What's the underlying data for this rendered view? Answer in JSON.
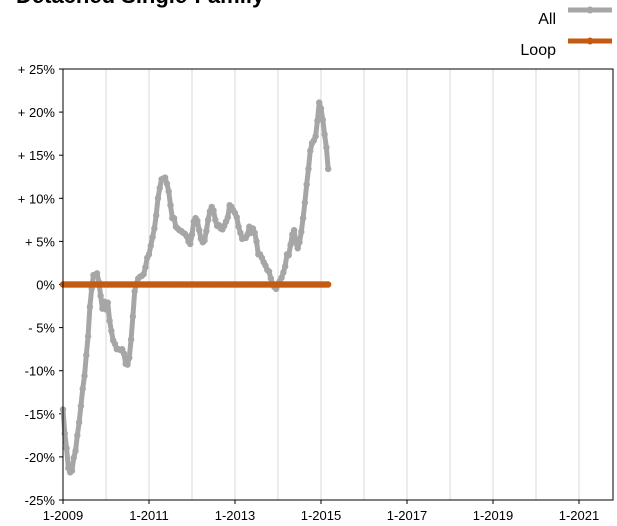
{
  "chart_data": {
    "type": "line",
    "title": "Detached Single-Family",
    "xlabel": "",
    "ylabel": "",
    "ylim": [
      -25,
      25
    ],
    "yticks": [
      25,
      20,
      15,
      10,
      5,
      0,
      -5,
      -10,
      -15,
      -20,
      -25
    ],
    "ytick_labels": [
      "+ 25%",
      "+ 20%",
      "+ 15%",
      "+ 10%",
      "+ 5%",
      "0%",
      "- 5%",
      "-10%",
      "-15%",
      "-20%",
      "-25%"
    ],
    "xtick_labels": [
      "1-2009",
      "1-2011",
      "1-2013",
      "1-2015",
      "1-2017",
      "1-2019",
      "1-2021"
    ],
    "grid": "vertical",
    "legend_position": "top-right",
    "colors": {
      "all": "#a6a6a6",
      "loop": "#c55a11",
      "title": "#c55a11",
      "grid": "#d9d9d9",
      "axis": "#000000"
    },
    "series": [
      {
        "name": "All",
        "x_start": "1-2009",
        "frequency": "monthly",
        "values": [
          -14.5,
          -17.3,
          -19.0,
          -21.3,
          -21.8,
          -21.6,
          -20.1,
          -19.3,
          -17.5,
          -16.0,
          -14.1,
          -12.1,
          -10.6,
          -8.2,
          -6.0,
          -2.6,
          -0.5,
          1.1,
          1.0,
          1.3,
          0.3,
          -1.3,
          -2.8,
          -2.0,
          -2.9,
          -2.1,
          -4.2,
          -5.4,
          -6.5,
          -6.9,
          -7.5,
          -7.5,
          -7.6,
          -7.5,
          -8.0,
          -9.2,
          -9.3,
          -8.5,
          -6.4,
          -3.7,
          -0.8,
          0.1,
          0.7,
          0.9,
          1.0,
          1.2,
          2.0,
          3.1,
          3.5,
          4.5,
          5.5,
          6.5,
          8.0,
          10.0,
          11.2,
          12.2,
          12.3,
          12.4,
          11.7,
          10.8,
          9.2,
          7.7,
          7.7,
          6.7,
          6.5,
          6.3,
          6.2,
          6.0,
          5.9,
          5.6,
          5.0,
          4.7,
          5.8,
          7.3,
          7.7,
          7.4,
          6.3,
          5.3,
          4.9,
          5.1,
          6.2,
          7.5,
          8.5,
          9.0,
          8.6,
          7.5,
          6.8,
          6.9,
          6.5,
          6.4,
          6.8,
          7.3,
          7.8,
          9.2,
          9.0,
          8.6,
          8.3,
          7.8,
          6.7,
          6.0,
          5.3,
          5.4,
          5.4,
          5.8,
          6.7,
          6.0,
          6.5,
          6.0,
          5.0,
          3.5,
          3.5,
          3.1,
          2.6,
          2.2,
          1.7,
          1.5,
          0.7,
          0.0,
          -0.3,
          -0.5,
          0.0,
          0.4,
          0.8,
          1.4,
          2.1,
          3.5,
          3.4,
          4.6,
          5.8,
          6.3,
          4.9,
          4.2,
          4.9,
          6.1,
          7.7,
          9.5,
          11.6,
          13.4,
          15.5,
          16.4,
          16.7,
          17.2,
          19.0,
          21.1,
          20.4,
          19.1,
          17.4,
          15.9,
          13.4
        ]
      },
      {
        "name": "Loop",
        "x_start": "1-2009",
        "frequency": "monthly",
        "constant_value": 0
      }
    ]
  }
}
